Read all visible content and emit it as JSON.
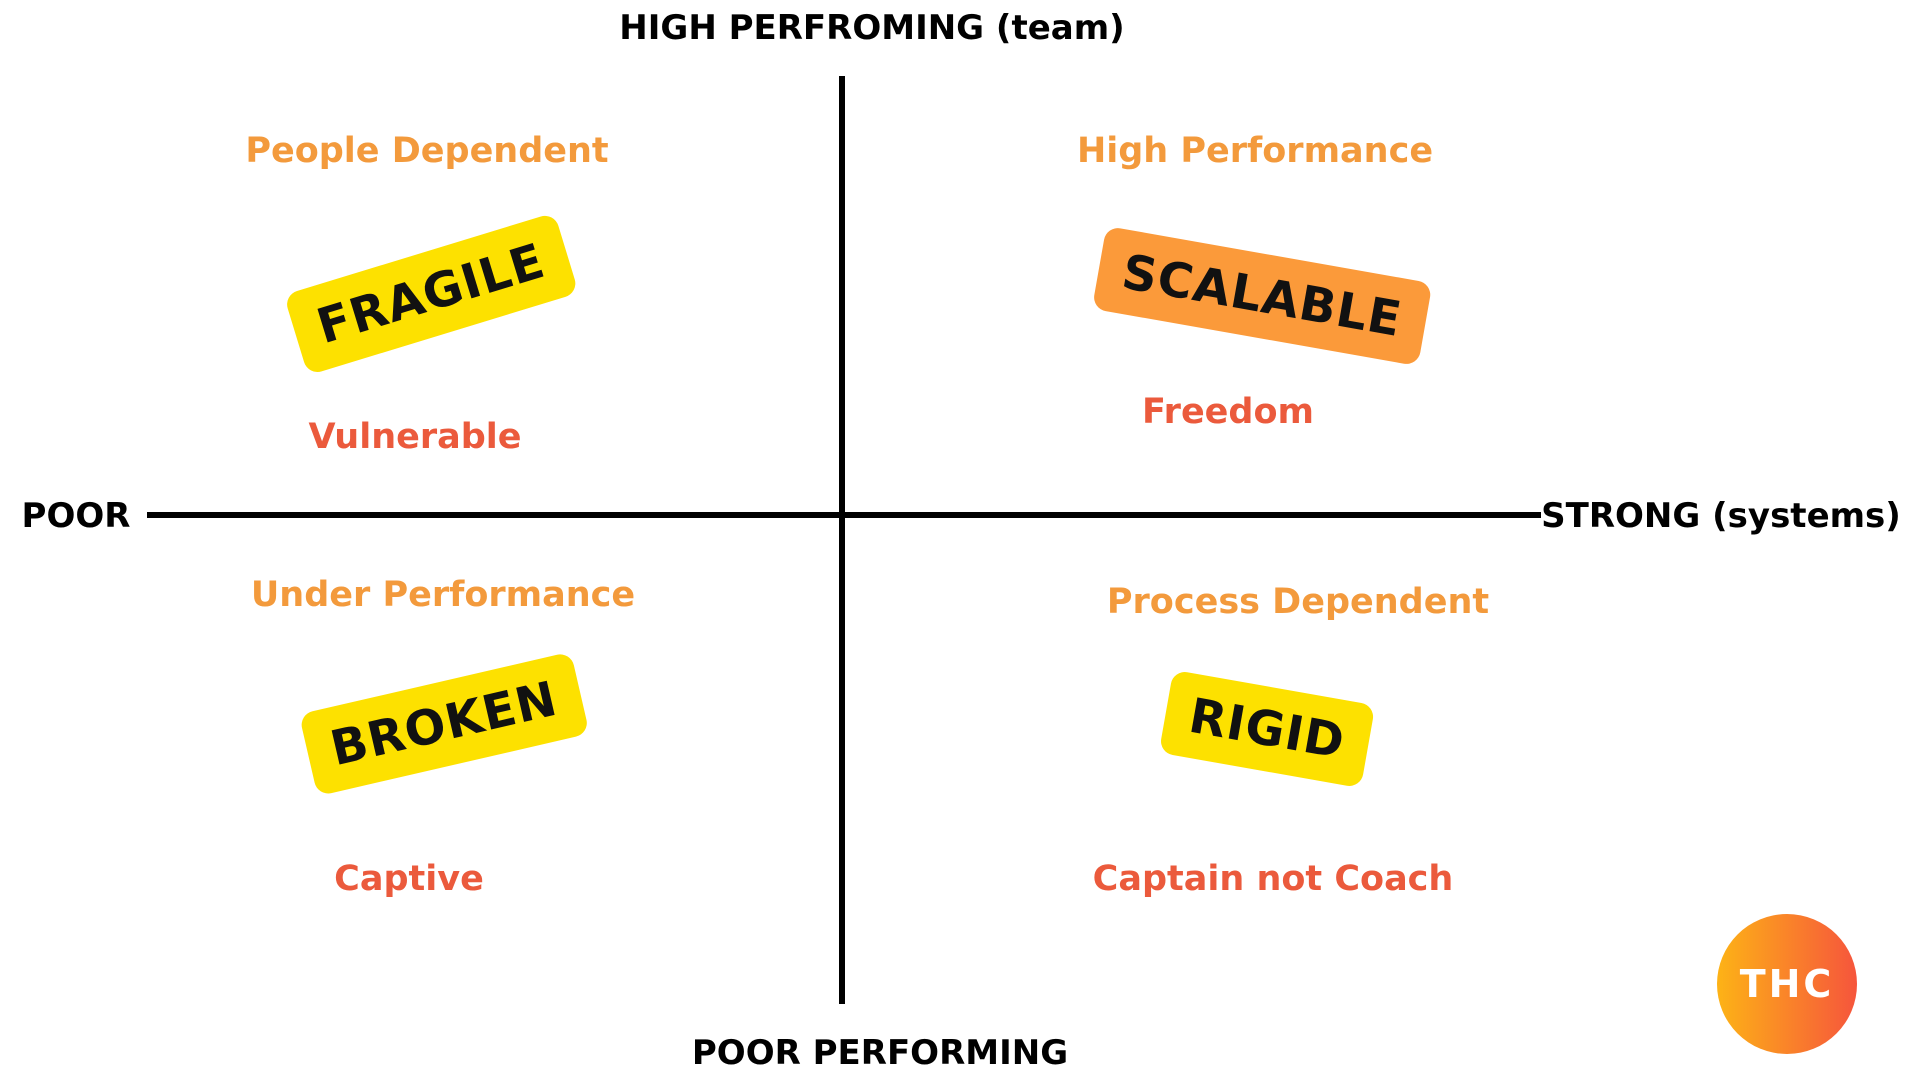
{
  "axes": {
    "top": "HIGH PERFROMING (team)",
    "bottom": "POOR PERFORMING",
    "left": "POOR",
    "right": "STRONG (systems)"
  },
  "quadrants": [
    {
      "heading": "People Dependent",
      "badge": "FRAGILE",
      "note": "Vulnerable"
    },
    {
      "heading": "High Performance",
      "badge": "SCALABLE",
      "note": "Freedom"
    },
    {
      "heading": "Under Performance",
      "badge": "BROKEN",
      "note": "Captive"
    },
    {
      "heading": "Process Dependent",
      "badge": "RIGID",
      "note": "Captain not Coach"
    }
  ],
  "logo": "THC"
}
